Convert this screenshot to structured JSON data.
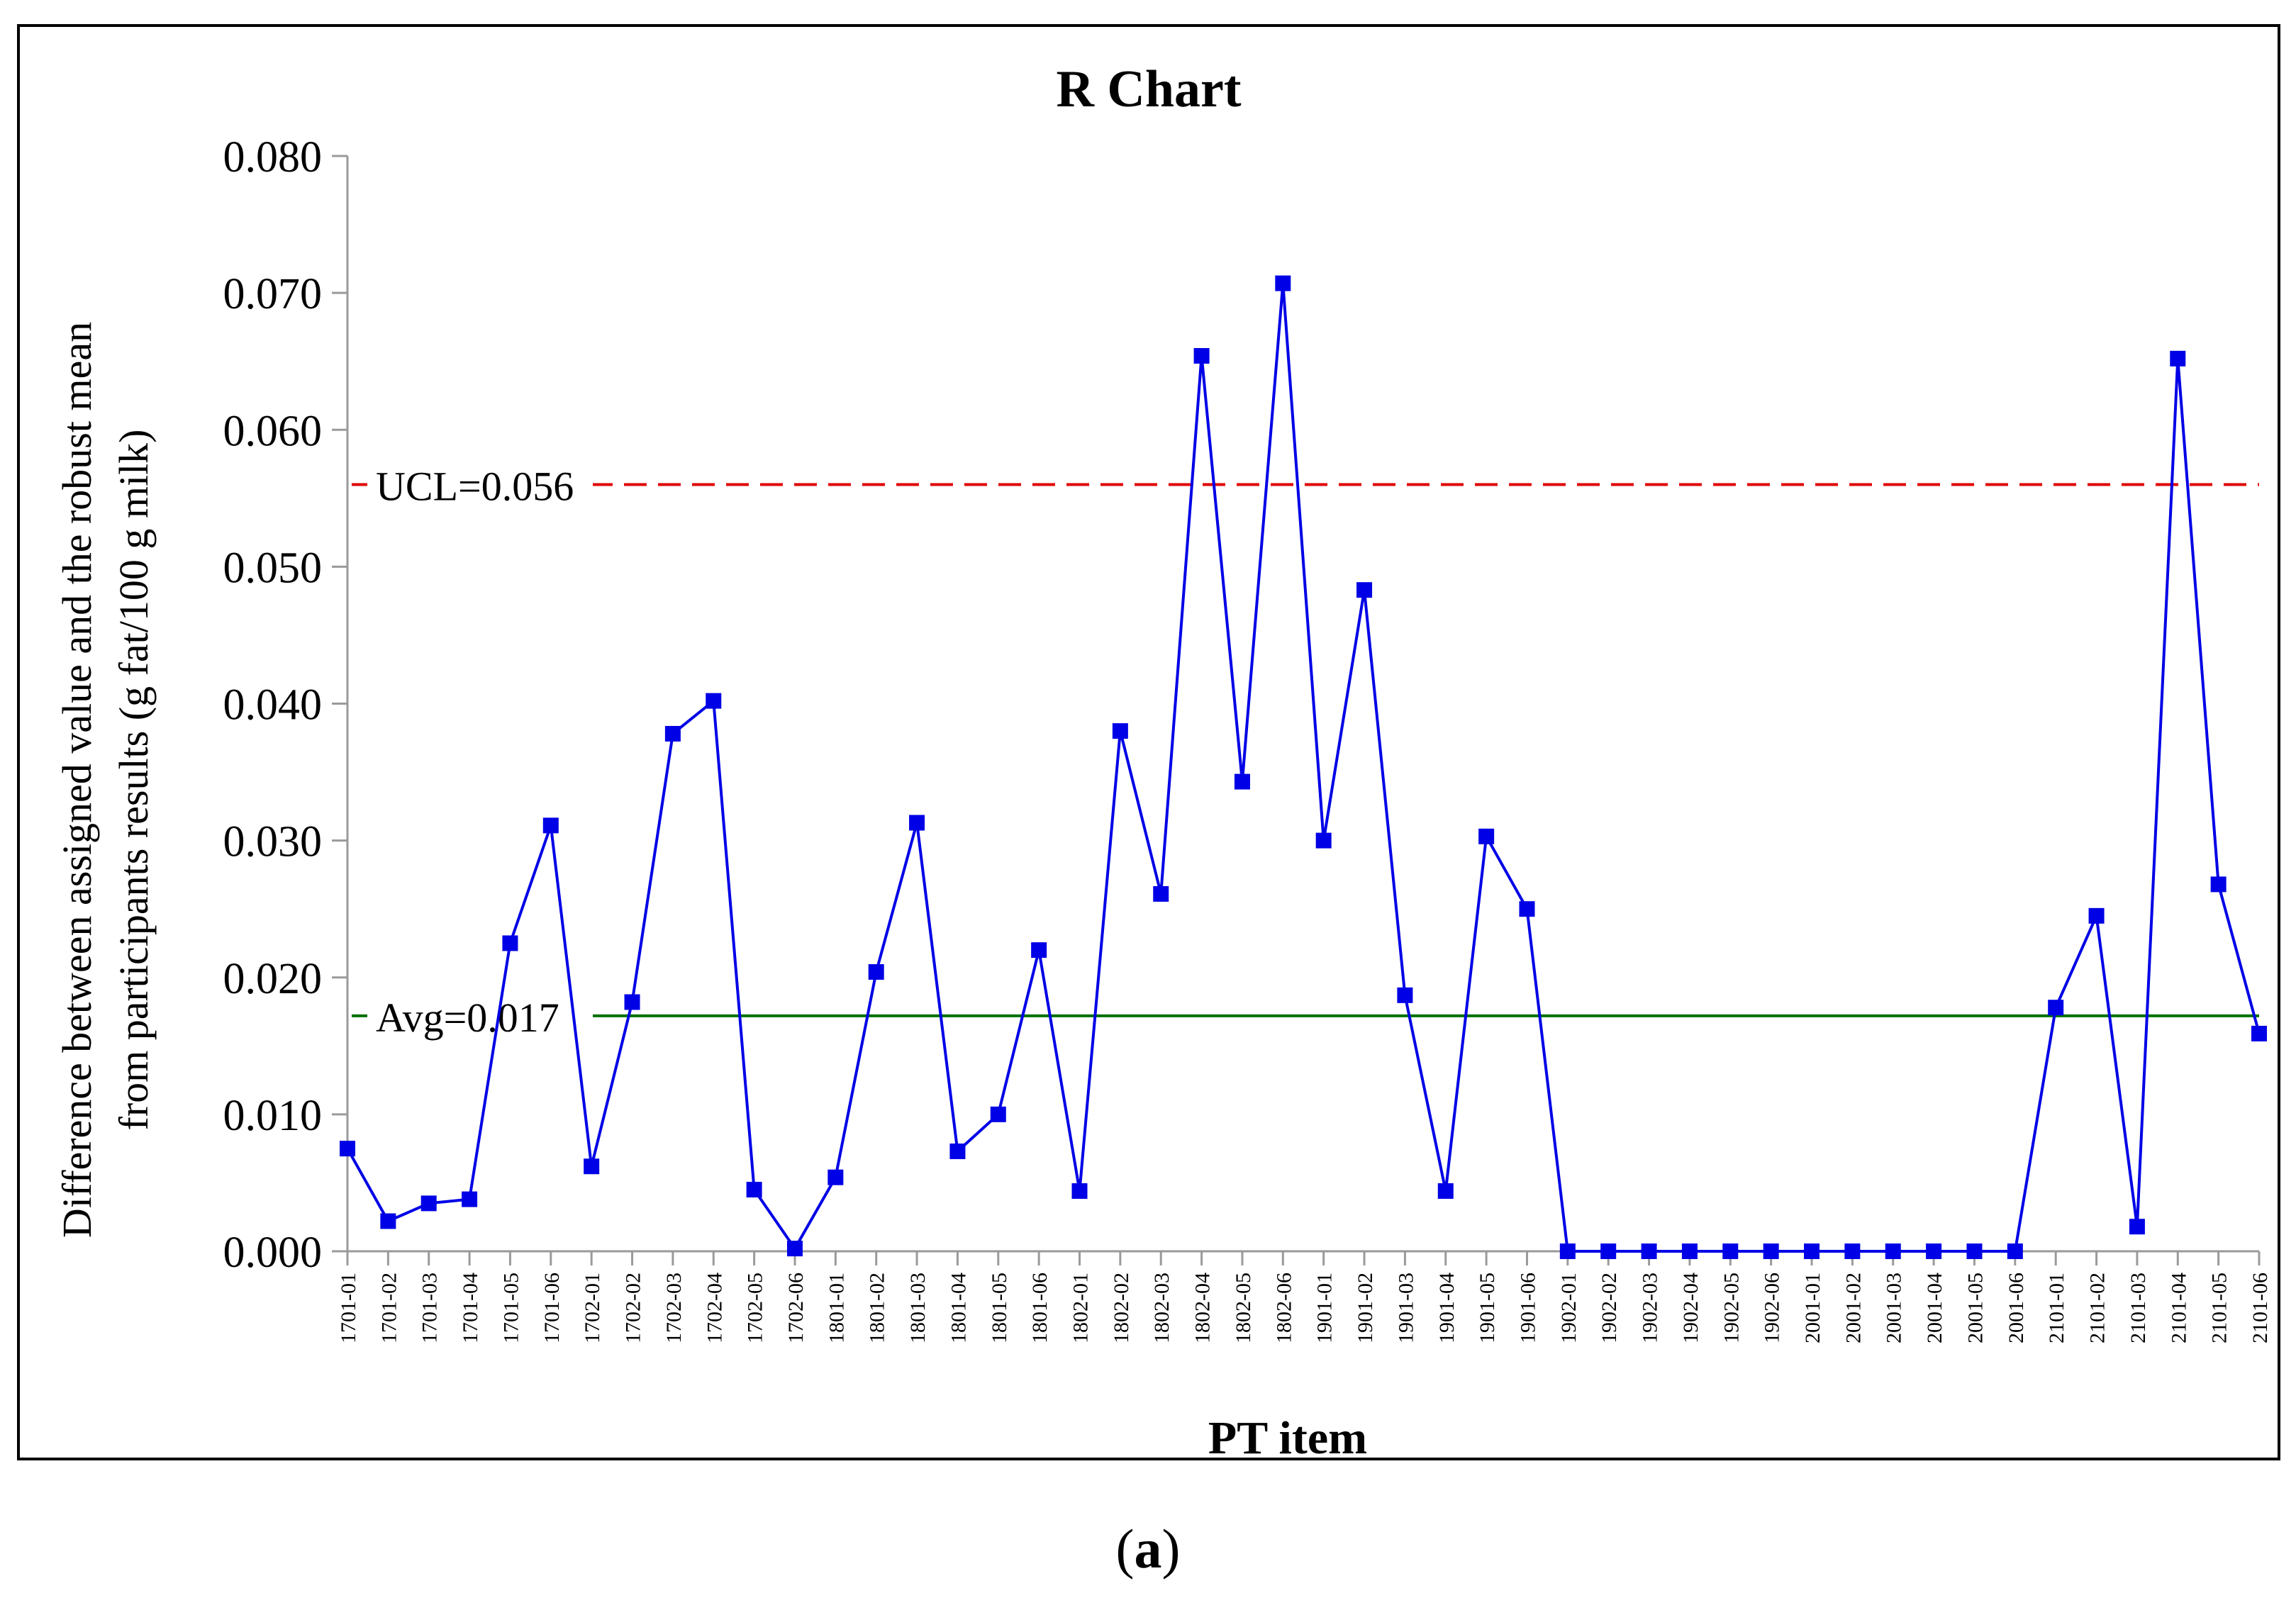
{
  "chart_data": {
    "type": "line",
    "title": "R Chart",
    "xlabel": "PT item",
    "ylabel_line1": "Difference between assigned value and the robust mean",
    "ylabel_line2": "from participants results (g fat/100 g milk)",
    "ylim": [
      0,
      0.08
    ],
    "yticks": [
      "0.000",
      "0.010",
      "0.020",
      "0.030",
      "0.040",
      "0.050",
      "0.060",
      "0.070",
      "0.080"
    ],
    "grid": false,
    "categories": [
      "1701-01",
      "1701-02",
      "1701-03",
      "1701-04",
      "1701-05",
      "1701-06",
      "1702-01",
      "1702-02",
      "1702-03",
      "1702-04",
      "1702-05",
      "1702-06",
      "1801-01",
      "1801-02",
      "1801-03",
      "1801-04",
      "1801-05",
      "1801-06",
      "1802-01",
      "1802-02",
      "1802-03",
      "1802-04",
      "1802-05",
      "1802-06",
      "1901-01",
      "1901-02",
      "1901-03",
      "1901-04",
      "1901-05",
      "1901-06",
      "1902-01",
      "1902-02",
      "1902-03",
      "1902-04",
      "1902-05",
      "1902-06",
      "2001-01",
      "2001-02",
      "2001-03",
      "2001-04",
      "2001-05",
      "2001-06",
      "2101-01",
      "2101-02",
      "2101-03",
      "2101-04",
      "2101-05",
      "2101-06"
    ],
    "series": [
      {
        "color": "#0000e6",
        "values": [
          0.0075,
          0.0022,
          0.0035,
          0.0038,
          0.0225,
          0.0311,
          0.0062,
          0.0182,
          0.0378,
          0.0402,
          0.0045,
          0.0002,
          0.0054,
          0.0204,
          0.0313,
          0.0073,
          0.01,
          0.022,
          0.0044,
          0.038,
          0.0261,
          0.0654,
          0.0343,
          0.0707,
          0.03,
          0.0483,
          0.0187,
          0.0044,
          0.0303,
          0.025,
          0.0,
          0.0,
          0.0,
          0.0,
          0.0,
          0.0,
          0.0,
          0.0,
          0.0,
          0.0,
          0.0,
          0.0,
          0.0178,
          0.0245,
          0.0018,
          0.0652,
          0.0268,
          0.0159
        ]
      }
    ],
    "reference_lines": [
      {
        "label": "UCL=0.056",
        "value": 0.056,
        "color": "#e00000",
        "style": "dashed"
      },
      {
        "label": "Avg=0.017",
        "value": 0.0172,
        "color": "#007000",
        "style": "solid"
      }
    ]
  },
  "panel_label": {
    "open": "(",
    "letter": "a",
    "close": ")"
  }
}
